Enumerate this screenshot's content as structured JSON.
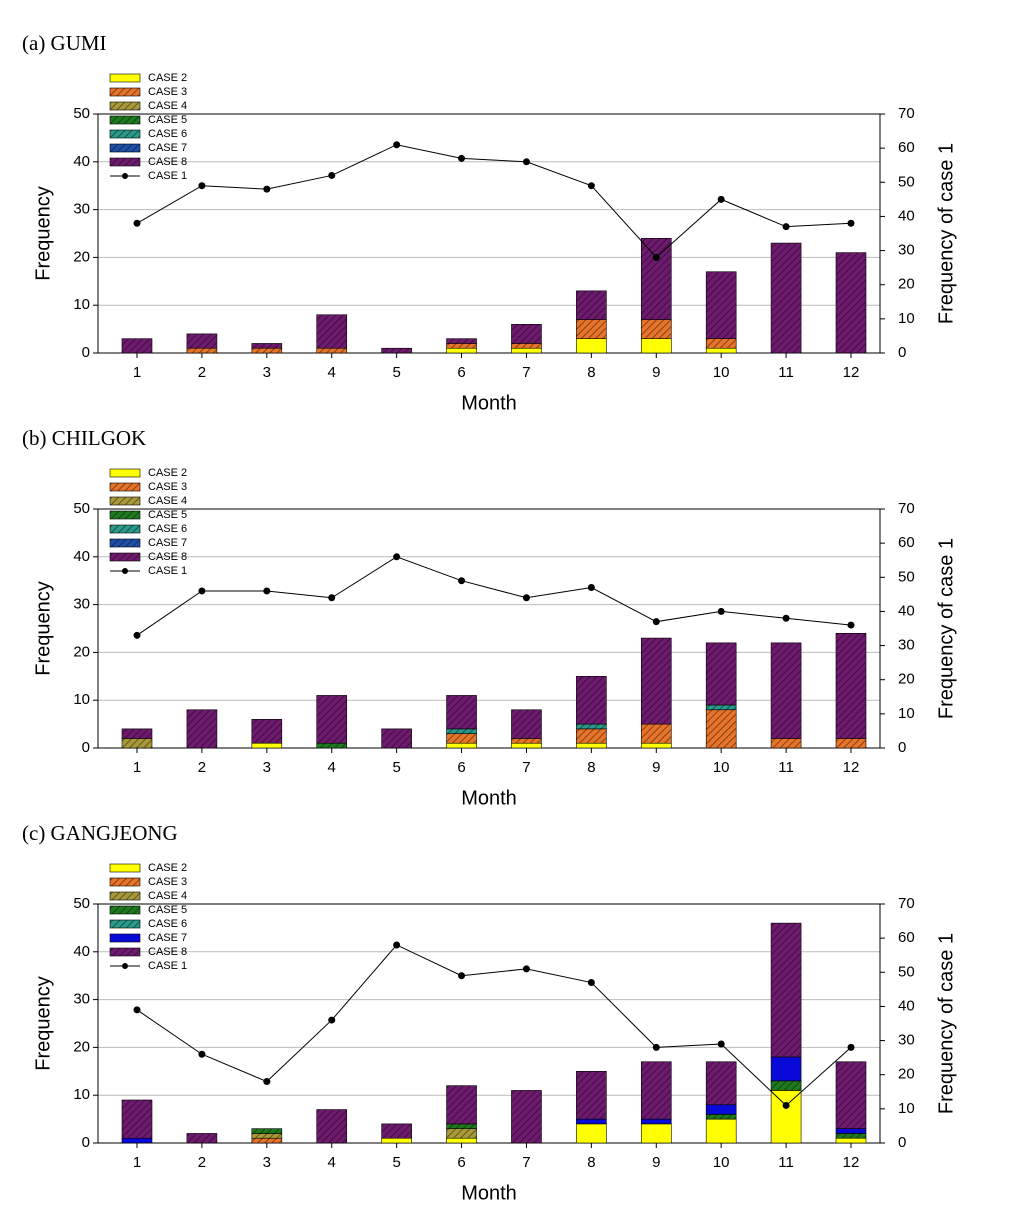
{
  "chart_data": [
    {
      "type": "bar",
      "stacked": true,
      "title": "(a) GUMI",
      "xlabel": "Month",
      "ylabel": "Frequency",
      "y2label": "Frequency of case 1",
      "categories": [
        "1",
        "2",
        "3",
        "4",
        "5",
        "6",
        "7",
        "8",
        "9",
        "10",
        "11",
        "12"
      ],
      "ylim": [
        0,
        50
      ],
      "yticks": [
        0,
        10,
        20,
        30,
        40,
        50
      ],
      "y2lim": [
        0,
        70
      ],
      "y2ticks": [
        0,
        10,
        20,
        30,
        40,
        50,
        60,
        70
      ],
      "grid": true,
      "legend": "upper left",
      "series": [
        {
          "name": "CASE 2",
          "color": "#ffff00",
          "hatch": false,
          "values": [
            0,
            0,
            0,
            0,
            0,
            1,
            1,
            3,
            3,
            1,
            0,
            0
          ]
        },
        {
          "name": "CASE 3",
          "color": "#e8742a",
          "hatch": true,
          "values": [
            0,
            1,
            1,
            1,
            0,
            1,
            1,
            4,
            4,
            2,
            0,
            0
          ]
        },
        {
          "name": "CASE 4",
          "color": "#a89a3a",
          "hatch": true,
          "values": [
            0,
            0,
            0,
            0,
            0,
            0,
            0,
            0,
            0,
            0,
            0,
            0
          ]
        },
        {
          "name": "CASE 5",
          "color": "#1f7a1f",
          "hatch": true,
          "values": [
            0,
            0,
            0,
            0,
            0,
            0,
            0,
            0,
            0,
            0,
            0,
            0
          ]
        },
        {
          "name": "CASE 6",
          "color": "#2a9a8a",
          "hatch": true,
          "values": [
            0,
            0,
            0,
            0,
            0,
            0,
            0,
            0,
            0,
            0,
            0,
            0
          ]
        },
        {
          "name": "CASE 7",
          "color": "#1f50a8",
          "hatch": true,
          "values": [
            0,
            0,
            0,
            0,
            0,
            0,
            0,
            0,
            0,
            0,
            0,
            0
          ]
        },
        {
          "name": "CASE 8",
          "color": "#6e1a6e",
          "hatch": true,
          "values": [
            3,
            3,
            1,
            7,
            1,
            1,
            4,
            6,
            17,
            14,
            23,
            21
          ]
        },
        {
          "name": "CASE 1",
          "color": "#000000",
          "type": "line",
          "axis": "y2",
          "values": [
            38,
            49,
            48,
            52,
            61,
            57,
            56,
            49,
            28,
            45,
            37,
            38
          ]
        }
      ]
    },
    {
      "type": "bar",
      "stacked": true,
      "title": "(b) CHILGOK",
      "xlabel": "Month",
      "ylabel": "Frequency",
      "y2label": "Frequency of case 1",
      "categories": [
        "1",
        "2",
        "3",
        "4",
        "5",
        "6",
        "7",
        "8",
        "9",
        "10",
        "11",
        "12"
      ],
      "ylim": [
        0,
        50
      ],
      "yticks": [
        0,
        10,
        20,
        30,
        40,
        50
      ],
      "y2lim": [
        0,
        70
      ],
      "y2ticks": [
        0,
        10,
        20,
        30,
        40,
        50,
        60,
        70
      ],
      "grid": true,
      "legend": "upper left",
      "series": [
        {
          "name": "CASE 2",
          "color": "#ffff00",
          "hatch": false,
          "values": [
            0,
            0,
            1,
            0,
            0,
            1,
            1,
            1,
            1,
            0,
            0,
            0
          ]
        },
        {
          "name": "CASE 3",
          "color": "#e8742a",
          "hatch": true,
          "values": [
            0,
            0,
            0,
            0,
            0,
            2,
            1,
            3,
            4,
            8,
            2,
            2
          ]
        },
        {
          "name": "CASE 4",
          "color": "#a89a3a",
          "hatch": true,
          "values": [
            2,
            0,
            0,
            0,
            0,
            0,
            0,
            0,
            0,
            0,
            0,
            0
          ]
        },
        {
          "name": "CASE 5",
          "color": "#1f7a1f",
          "hatch": true,
          "values": [
            0,
            0,
            0,
            1,
            0,
            0,
            0,
            0,
            0,
            0,
            0,
            0
          ]
        },
        {
          "name": "CASE 6",
          "color": "#2a9a8a",
          "hatch": true,
          "values": [
            0,
            0,
            0,
            0,
            0,
            1,
            0,
            1,
            0,
            1,
            0,
            0
          ]
        },
        {
          "name": "CASE 7",
          "color": "#1f50a8",
          "hatch": true,
          "values": [
            0,
            0,
            0,
            0,
            0,
            0,
            0,
            0,
            0,
            0,
            0,
            0
          ]
        },
        {
          "name": "CASE 8",
          "color": "#6e1a6e",
          "hatch": true,
          "values": [
            2,
            8,
            5,
            10,
            4,
            7,
            6,
            10,
            18,
            13,
            20,
            22
          ]
        },
        {
          "name": "CASE 1",
          "color": "#000000",
          "type": "line",
          "axis": "y2",
          "values": [
            33,
            46,
            46,
            44,
            56,
            49,
            44,
            47,
            37,
            40,
            38,
            36
          ]
        }
      ]
    },
    {
      "type": "bar",
      "stacked": true,
      "title": "(c) GANGJEONG",
      "xlabel": "Month",
      "ylabel": "Frequency",
      "y2label": "Frequency of case 1",
      "categories": [
        "1",
        "2",
        "3",
        "4",
        "5",
        "6",
        "7",
        "8",
        "9",
        "10",
        "11",
        "12"
      ],
      "ylim": [
        0,
        50
      ],
      "yticks": [
        0,
        10,
        20,
        30,
        40,
        50
      ],
      "y2lim": [
        0,
        70
      ],
      "y2ticks": [
        0,
        10,
        20,
        30,
        40,
        50,
        60,
        70
      ],
      "grid": true,
      "legend": "upper left",
      "series": [
        {
          "name": "CASE 2",
          "color": "#ffff00",
          "hatch": false,
          "values": [
            0,
            0,
            0,
            0,
            1,
            1,
            0,
            4,
            4,
            5,
            11,
            1
          ]
        },
        {
          "name": "CASE 3",
          "color": "#e8742a",
          "hatch": true,
          "values": [
            0,
            0,
            1,
            0,
            0,
            0,
            0,
            0,
            0,
            0,
            0,
            0
          ]
        },
        {
          "name": "CASE 4",
          "color": "#a89a3a",
          "hatch": true,
          "values": [
            0,
            0,
            1,
            0,
            0,
            2,
            0,
            0,
            0,
            0,
            0,
            0
          ]
        },
        {
          "name": "CASE 5",
          "color": "#1f7a1f",
          "hatch": true,
          "values": [
            0,
            0,
            1,
            0,
            0,
            1,
            0,
            0,
            0,
            1,
            2,
            1
          ]
        },
        {
          "name": "CASE 6",
          "color": "#2a9a8a",
          "hatch": true,
          "values": [
            0,
            0,
            0,
            0,
            0,
            0,
            0,
            0,
            0,
            0,
            0,
            0
          ]
        },
        {
          "name": "CASE 7",
          "color": "#0a0ad8",
          "hatch": false,
          "values": [
            1,
            0,
            0,
            0,
            0,
            0,
            0,
            1,
            1,
            2,
            5,
            1
          ]
        },
        {
          "name": "CASE 8",
          "color": "#6e1a6e",
          "hatch": true,
          "values": [
            8,
            2,
            0,
            7,
            3,
            8,
            11,
            10,
            12,
            9,
            28,
            14
          ]
        },
        {
          "name": "CASE 1",
          "color": "#000000",
          "type": "line",
          "axis": "y2",
          "values": [
            39,
            26,
            18,
            36,
            58,
            49,
            51,
            47,
            28,
            29,
            11,
            28
          ]
        }
      ]
    }
  ]
}
